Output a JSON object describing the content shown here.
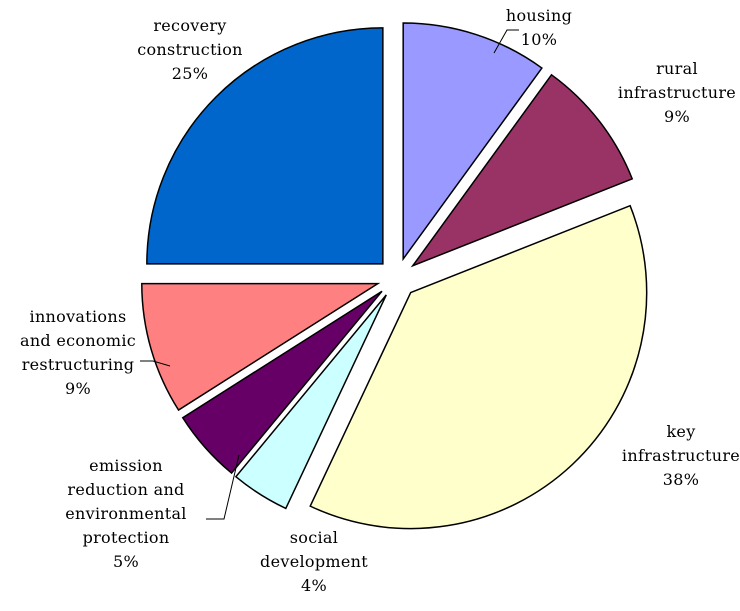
{
  "chart_data": {
    "type": "pie",
    "title": "",
    "start_angle_deg": 0,
    "direction": "clockwise",
    "slices": [
      {
        "label": "housing",
        "value": 10,
        "percent_label": "10%",
        "color": "#9999ff"
      },
      {
        "label": "rural infrastructure",
        "value": 9,
        "percent_label": "9%",
        "color": "#993366"
      },
      {
        "label": "key infrastructure",
        "value": 38,
        "percent_label": "38%",
        "color": "#ffffcc"
      },
      {
        "label": "social development",
        "value": 4,
        "percent_label": "4%",
        "color": "#ccffff"
      },
      {
        "label": "emission reduction and environmental protection",
        "value": 5,
        "percent_label": "5%",
        "color": "#660066"
      },
      {
        "label": "innovations and economic restructuring",
        "value": 9,
        "percent_label": "9%",
        "color": "#ff8080"
      },
      {
        "label": "recovery construction",
        "value": 25,
        "percent_label": "25%",
        "color": "#0066cc"
      }
    ]
  },
  "labels": [
    {
      "lines": [
        "housing",
        "10%"
      ]
    },
    {
      "lines": [
        "rural",
        "infrastructure",
        "9%"
      ]
    },
    {
      "lines": [
        "key",
        "infrastructure",
        "38%"
      ]
    },
    {
      "lines": [
        "social",
        "development",
        "4%"
      ]
    },
    {
      "lines": [
        "emission",
        "reduction and",
        "environmental",
        "protection",
        "5%"
      ]
    },
    {
      "lines": [
        "innovations",
        "and economic",
        "restructuring",
        "9%"
      ]
    },
    {
      "lines": [
        "recovery",
        "construction",
        "25%"
      ]
    }
  ]
}
